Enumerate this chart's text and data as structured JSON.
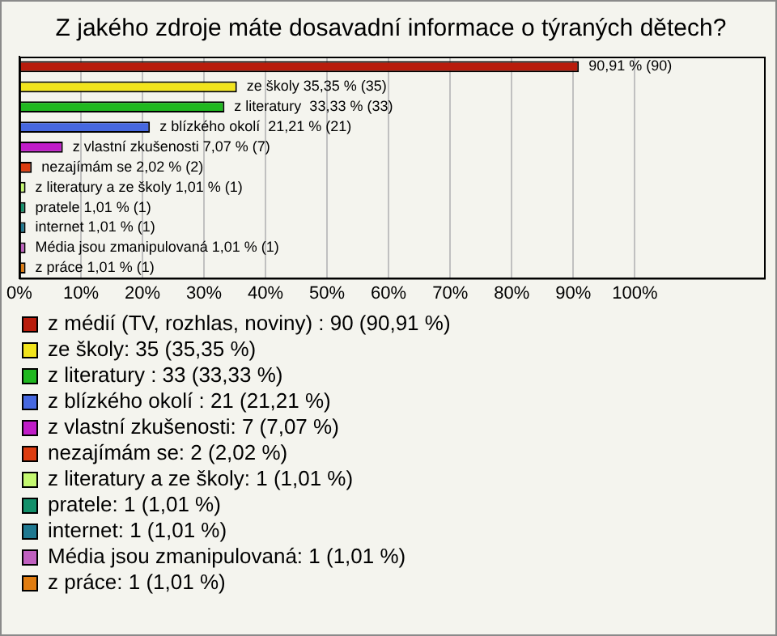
{
  "chart_data": {
    "type": "bar",
    "orientation": "horizontal",
    "title": "Z jakého zdroje máte dosavadní informace o týraných dětech?",
    "categories": [
      null,
      null,
      null,
      null,
      null,
      null,
      null,
      null,
      null,
      null,
      null
    ],
    "series": [
      {
        "name": "z médií (TV, rozhlas, noviny) : 90 (90,91 %)",
        "color": "#b81c0c",
        "values": [
          90.91,
          null,
          null,
          null,
          null,
          null,
          null,
          null,
          null,
          null,
          null
        ],
        "value_labels": [
          "90,91 % (90)",
          null,
          null,
          null,
          null,
          null,
          null,
          null,
          null,
          null,
          null
        ]
      },
      {
        "name": "ze školy: 35 (35,35 %)",
        "color": "#f2e41c",
        "values": [
          null,
          35.35,
          null,
          null,
          null,
          null,
          null,
          null,
          null,
          null,
          null
        ],
        "value_labels": [
          null,
          "ze školy 35,35 % (35)",
          null,
          null,
          null,
          null,
          null,
          null,
          null,
          null,
          null
        ]
      },
      {
        "name": "z literatury : 33 (33,33 %)",
        "color": "#20b820",
        "values": [
          null,
          null,
          33.33,
          null,
          null,
          null,
          null,
          null,
          null,
          null,
          null
        ],
        "value_labels": [
          null,
          null,
          "z literatury  33,33 % (33)",
          null,
          null,
          null,
          null,
          null,
          null,
          null,
          null
        ]
      },
      {
        "name": "z blízkého okolí : 21 (21,21 %)",
        "color": "#4668e0",
        "values": [
          null,
          null,
          null,
          21.21,
          null,
          null,
          null,
          null,
          null,
          null,
          null
        ],
        "value_labels": [
          null,
          null,
          null,
          "z blízkého okolí  21,21 % (21)",
          null,
          null,
          null,
          null,
          null,
          null,
          null
        ]
      },
      {
        "name": "z vlastní zkušenosti: 7 (7,07 %)",
        "color": "#c01cc8",
        "values": [
          null,
          null,
          null,
          null,
          7.07,
          null,
          null,
          null,
          null,
          null,
          null
        ],
        "value_labels": [
          null,
          null,
          null,
          null,
          "z vlastní zkušenosti 7,07 % (7)",
          null,
          null,
          null,
          null,
          null,
          null
        ]
      },
      {
        "name": "nezajímám se: 2 (2,02 %)",
        "color": "#dc3c10",
        "values": [
          null,
          null,
          null,
          null,
          null,
          2.02,
          null,
          null,
          null,
          null,
          null
        ],
        "value_labels": [
          null,
          null,
          null,
          null,
          null,
          "nezajímám se 2,02 % (2)",
          null,
          null,
          null,
          null,
          null
        ]
      },
      {
        "name": "z literatury a ze školy: 1 (1,01 %)",
        "color": "#c4f870",
        "values": [
          null,
          null,
          null,
          null,
          null,
          null,
          1.01,
          null,
          null,
          null,
          null
        ],
        "value_labels": [
          null,
          null,
          null,
          null,
          null,
          null,
          "z literatury a ze školy 1,01 % (1)",
          null,
          null,
          null,
          null
        ]
      },
      {
        "name": "pratele: 1 (1,01 %)",
        "color": "#12906a",
        "values": [
          null,
          null,
          null,
          null,
          null,
          null,
          null,
          1.01,
          null,
          null,
          null
        ],
        "value_labels": [
          null,
          null,
          null,
          null,
          null,
          null,
          null,
          "pratele 1,01 % (1)",
          null,
          null,
          null
        ]
      },
      {
        "name": "internet: 1 (1,01 %)",
        "color": "#1e7890",
        "values": [
          null,
          null,
          null,
          null,
          null,
          null,
          null,
          null,
          1.01,
          null,
          null
        ],
        "value_labels": [
          null,
          null,
          null,
          null,
          null,
          null,
          null,
          null,
          "internet 1,01 % (1)",
          null,
          null
        ]
      },
      {
        "name": "Média jsou zmanipulovaná: 1 (1,01 %)",
        "color": "#c060c0",
        "values": [
          null,
          null,
          null,
          null,
          null,
          null,
          null,
          null,
          null,
          1.01,
          null
        ],
        "value_labels": [
          null,
          null,
          null,
          null,
          null,
          null,
          null,
          null,
          null,
          "Média jsou zmanipulovaná 1,01 % (1)",
          null
        ]
      },
      {
        "name": "z práce: 1 (1,01 %)",
        "color": "#e07c10",
        "values": [
          null,
          null,
          null,
          null,
          null,
          null,
          null,
          null,
          null,
          null,
          1.01
        ],
        "value_labels": [
          null,
          null,
          null,
          null,
          null,
          null,
          null,
          null,
          null,
          null,
          "z práce 1,01 % (1)"
        ]
      }
    ],
    "xlim": [
      0,
      121
    ],
    "xticks": [
      {
        "value": 0,
        "label": "0%"
      },
      {
        "value": 10,
        "label": "10%"
      },
      {
        "value": 20,
        "label": "20%"
      },
      {
        "value": 30,
        "label": "30%"
      },
      {
        "value": 40,
        "label": "40%"
      },
      {
        "value": 50,
        "label": "50%"
      },
      {
        "value": 60,
        "label": "60%"
      },
      {
        "value": 70,
        "label": "70%"
      },
      {
        "value": 80,
        "label": "80%"
      },
      {
        "value": 90,
        "label": "90%"
      },
      {
        "value": 100,
        "label": "100%"
      }
    ],
    "grid": "x",
    "tick_labels": "x",
    "legend": "bottom"
  }
}
